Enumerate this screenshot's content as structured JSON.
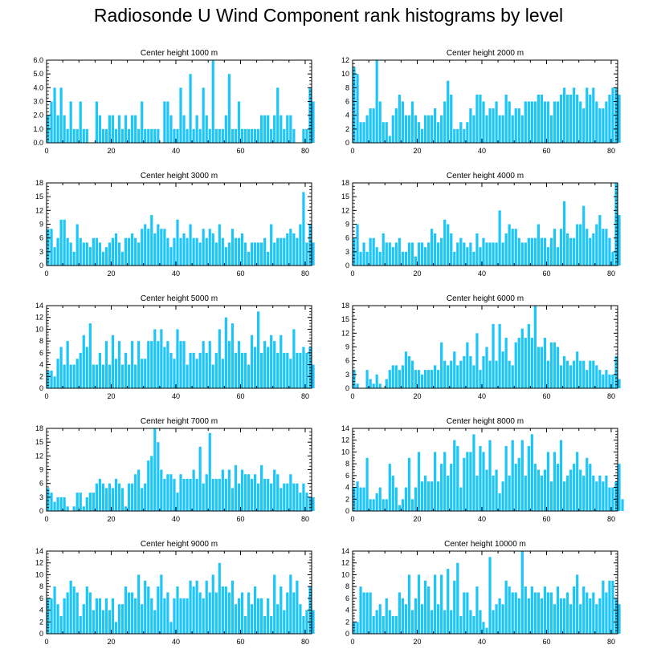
{
  "title": "Radiosonde U Wind Component rank histograms by level",
  "bar_color": "#1ec6f8",
  "chart_data": [
    {
      "type": "bar",
      "title": "Center height 1000 m",
      "xlim": [
        0,
        82
      ],
      "ylim": [
        0,
        6
      ],
      "yticks": [
        "0.0",
        "1.0",
        "2.0",
        "3.0",
        "4.0",
        "5.0",
        "6.0"
      ],
      "xticks": [
        "0",
        "20",
        "40",
        "60",
        "80"
      ],
      "values": [
        2,
        3,
        4,
        2,
        4,
        2,
        1,
        3,
        1,
        1,
        3,
        1,
        1,
        0,
        0,
        3,
        2,
        1,
        1,
        2,
        2,
        1,
        2,
        1,
        2,
        1,
        2,
        2,
        1,
        3,
        1,
        1,
        1,
        1,
        1,
        0,
        3,
        3,
        2,
        1,
        1,
        4,
        2,
        1,
        5,
        1,
        2,
        1,
        4,
        2,
        1,
        6,
        1,
        1,
        1,
        2,
        5,
        1,
        1,
        3,
        1,
        1,
        1,
        1,
        1,
        1,
        2,
        2,
        2,
        1,
        2,
        4,
        2,
        1,
        2,
        2,
        1,
        0,
        0,
        1,
        1,
        4,
        3
      ]
    },
    {
      "type": "bar",
      "title": "Center height 2000 m",
      "xlim": [
        0,
        82
      ],
      "ylim": [
        0,
        12
      ],
      "yticks": [
        "0",
        "2",
        "4",
        "6",
        "8",
        "10",
        "12"
      ],
      "xticks": [
        "0",
        "20",
        "40",
        "60",
        "80"
      ],
      "values": [
        11,
        10,
        3,
        3,
        4,
        5,
        5,
        12,
        6,
        3,
        3,
        1,
        4,
        5,
        7,
        6,
        4,
        4,
        6,
        4,
        3,
        2,
        4,
        4,
        4,
        5,
        3,
        4,
        6,
        9,
        7,
        2,
        2,
        3,
        2,
        3,
        5,
        4,
        7,
        7,
        6,
        4,
        5,
        5,
        6,
        4,
        4,
        7,
        6,
        4,
        5,
        5,
        4,
        6,
        6,
        6,
        6,
        7,
        7,
        6,
        6,
        4,
        6,
        6,
        7,
        8,
        7,
        7,
        8,
        7,
        6,
        5,
        8,
        7,
        8,
        6,
        5,
        5,
        6,
        7,
        8,
        8,
        7
      ]
    },
    {
      "type": "bar",
      "title": "Center height 3000 m",
      "xlim": [
        0,
        82
      ],
      "ylim": [
        0,
        18
      ],
      "yticks": [
        "0",
        "3",
        "6",
        "9",
        "12",
        "15",
        "18"
      ],
      "xticks": [
        "0",
        "20",
        "40",
        "60",
        "80"
      ],
      "values": [
        8,
        8,
        4,
        6,
        10,
        10,
        6,
        5,
        3,
        9,
        6,
        5,
        5,
        4,
        6,
        6,
        5,
        3,
        4,
        5,
        6,
        7,
        5,
        3,
        6,
        6,
        7,
        6,
        5,
        8,
        9,
        8,
        11,
        7,
        9,
        8,
        8,
        6,
        4,
        6,
        10,
        6,
        7,
        6,
        9,
        6,
        6,
        5,
        8,
        6,
        8,
        7,
        5,
        9,
        6,
        4,
        5,
        8,
        6,
        6,
        7,
        5,
        3,
        5,
        5,
        5,
        5,
        6,
        3,
        9,
        5,
        6,
        6,
        6,
        7,
        8,
        7,
        6,
        9,
        16,
        5,
        9,
        5
      ]
    },
    {
      "type": "bar",
      "title": "Center height 4000 m",
      "xlim": [
        0,
        82
      ],
      "ylim": [
        0,
        18
      ],
      "yticks": [
        "0",
        "3",
        "6",
        "9",
        "12",
        "15",
        "18"
      ],
      "xticks": [
        "0",
        "20",
        "40",
        "60",
        "80"
      ],
      "values": [
        6,
        9,
        3,
        5,
        3,
        6,
        6,
        4,
        3,
        7,
        5,
        5,
        4,
        5,
        6,
        3,
        3,
        5,
        5,
        2,
        5,
        5,
        4,
        5,
        8,
        7,
        5,
        6,
        10,
        9,
        7,
        3,
        5,
        6,
        5,
        4,
        5,
        3,
        7,
        4,
        6,
        5,
        5,
        5,
        5,
        12,
        5,
        7,
        9,
        8,
        8,
        6,
        5,
        5,
        6,
        6,
        6,
        9,
        6,
        6,
        4,
        6,
        8,
        4,
        8,
        14,
        7,
        6,
        6,
        9,
        9,
        13,
        8,
        6,
        7,
        9,
        11,
        8,
        8,
        6,
        3,
        18,
        11
      ]
    },
    {
      "type": "bar",
      "title": "Center height 5000 m",
      "xlim": [
        0,
        82
      ],
      "ylim": [
        0,
        14
      ],
      "yticks": [
        "0",
        "2",
        "4",
        "6",
        "8",
        "10",
        "12",
        "14"
      ],
      "xticks": [
        "0",
        "20",
        "40",
        "60",
        "80"
      ],
      "values": [
        3,
        3,
        2,
        5,
        7,
        4,
        8,
        4,
        4,
        5,
        6,
        9,
        7,
        11,
        4,
        4,
        6,
        4,
        8,
        4,
        9,
        5,
        8,
        4,
        6,
        4,
        8,
        4,
        8,
        5,
        5,
        8,
        8,
        10,
        8,
        10,
        7,
        8,
        6,
        5,
        10,
        8,
        8,
        4,
        6,
        6,
        5,
        6,
        8,
        6,
        8,
        4,
        6,
        10,
        5,
        12,
        8,
        11,
        6,
        8,
        6,
        6,
        4,
        9,
        7,
        13,
        6,
        8,
        7,
        9,
        8,
        6,
        9,
        6,
        6,
        5,
        10,
        6,
        6,
        7,
        6,
        7,
        4
      ]
    },
    {
      "type": "bar",
      "title": "Center height 6000 m",
      "xlim": [
        0,
        82
      ],
      "ylim": [
        0,
        18
      ],
      "yticks": [
        "0",
        "3",
        "6",
        "9",
        "12",
        "15",
        "18"
      ],
      "xticks": [
        "0",
        "20",
        "40",
        "60",
        "80"
      ],
      "values": [
        4,
        1,
        0,
        0,
        4,
        2,
        1,
        3,
        1,
        0,
        2,
        4,
        5,
        5,
        4,
        5,
        8,
        7,
        6,
        4,
        4,
        3,
        4,
        4,
        4,
        5,
        4,
        10,
        6,
        5,
        6,
        8,
        5,
        6,
        7,
        10,
        7,
        5,
        12,
        4,
        7,
        9,
        6,
        14,
        6,
        14,
        8,
        11,
        6,
        5,
        10,
        11,
        13,
        11,
        14,
        11,
        18,
        9,
        9,
        11,
        6,
        10,
        10,
        9,
        5,
        7,
        6,
        5,
        6,
        8,
        6,
        6,
        4,
        6,
        6,
        5,
        4,
        3,
        4,
        3,
        3,
        7,
        2
      ]
    },
    {
      "type": "bar",
      "title": "Center height 7000 m",
      "xlim": [
        0,
        82
      ],
      "ylim": [
        0,
        18
      ],
      "yticks": [
        "0",
        "3",
        "6",
        "9",
        "12",
        "15",
        "18"
      ],
      "xticks": [
        "0",
        "20",
        "40",
        "60",
        "80"
      ],
      "values": [
        5,
        4,
        2,
        3,
        3,
        3,
        1,
        0,
        1,
        4,
        4,
        1,
        3,
        4,
        4,
        6,
        7,
        6,
        5,
        6,
        5,
        7,
        6,
        5,
        1,
        6,
        6,
        8,
        9,
        5,
        6,
        11,
        12,
        18,
        15,
        9,
        7,
        8,
        8,
        7,
        4,
        8,
        7,
        7,
        7,
        9,
        7,
        14,
        6,
        8,
        17,
        7,
        7,
        7,
        9,
        7,
        9,
        5,
        10,
        6,
        9,
        8,
        8,
        7,
        8,
        6,
        10,
        7,
        7,
        6,
        9,
        8,
        5,
        6,
        6,
        8,
        6,
        6,
        4,
        6,
        4,
        3,
        3
      ]
    },
    {
      "type": "bar",
      "title": "Center height 8000 m",
      "xlim": [
        0,
        82
      ],
      "ylim": [
        0,
        14
      ],
      "yticks": [
        "0",
        "2",
        "4",
        "6",
        "8",
        "10",
        "12",
        "14"
      ],
      "xticks": [
        "0",
        "20",
        "40",
        "60",
        "80"
      ],
      "values": [
        4,
        5,
        4,
        4,
        9,
        2,
        2,
        3,
        4,
        2,
        2,
        8,
        6,
        4,
        1,
        2,
        4,
        9,
        2,
        4,
        10,
        5,
        6,
        5,
        5,
        10,
        5,
        8,
        10,
        6,
        8,
        12,
        11,
        4,
        9,
        10,
        10,
        13,
        6,
        11,
        10,
        7,
        12,
        6,
        7,
        3,
        5,
        11,
        6,
        12,
        8,
        9,
        12,
        6,
        11,
        13,
        8,
        7,
        6,
        7,
        10,
        5,
        10,
        8,
        12,
        5,
        6,
        7,
        8,
        10,
        7,
        6,
        9,
        8,
        6,
        5,
        6,
        5,
        6,
        4,
        4,
        5,
        8,
        2
      ]
    },
    {
      "type": "bar",
      "title": "Center height 9000 m",
      "xlim": [
        0,
        82
      ],
      "ylim": [
        0,
        14
      ],
      "yticks": [
        "0",
        "2",
        "4",
        "6",
        "8",
        "10",
        "12",
        "14"
      ],
      "xticks": [
        "0",
        "20",
        "40",
        "60",
        "80"
      ],
      "values": [
        6,
        6,
        8,
        5,
        3,
        6,
        7,
        9,
        8,
        7,
        3,
        5,
        8,
        7,
        4,
        6,
        6,
        4,
        6,
        4,
        6,
        2,
        5,
        5,
        8,
        7,
        7,
        6,
        10,
        5,
        9,
        8,
        6,
        4,
        8,
        10,
        6,
        7,
        2,
        6,
        8,
        6,
        6,
        6,
        9,
        8,
        9,
        7,
        6,
        9,
        7,
        10,
        7,
        12,
        8,
        8,
        7,
        9,
        5,
        6,
        7,
        3,
        7,
        5,
        8,
        6,
        6,
        3,
        6,
        3,
        10,
        5,
        8,
        4,
        7,
        10,
        7,
        9,
        5,
        3,
        4,
        8,
        4
      ]
    },
    {
      "type": "bar",
      "title": "Center height 10000 m",
      "xlim": [
        0,
        82
      ],
      "ylim": [
        0,
        14
      ],
      "yticks": [
        "0",
        "2",
        "4",
        "6",
        "8",
        "10",
        "12",
        "14"
      ],
      "xticks": [
        "0",
        "20",
        "40",
        "60",
        "80"
      ],
      "values": [
        2,
        2,
        8,
        7,
        7,
        7,
        3,
        4,
        5,
        3,
        6,
        4,
        3,
        3,
        7,
        6,
        5,
        10,
        4,
        6,
        10,
        5,
        9,
        8,
        4,
        10,
        5,
        10,
        4,
        11,
        4,
        9,
        12,
        3,
        7,
        7,
        4,
        3,
        8,
        4,
        2,
        1,
        13,
        4,
        5,
        6,
        5,
        9,
        8,
        7,
        7,
        6,
        14,
        8,
        6,
        8,
        7,
        7,
        6,
        8,
        7,
        7,
        5,
        8,
        6,
        6,
        7,
        5,
        8,
        10,
        5,
        8,
        7,
        6,
        7,
        5,
        6,
        9,
        7,
        9,
        9,
        6,
        5
      ]
    }
  ]
}
